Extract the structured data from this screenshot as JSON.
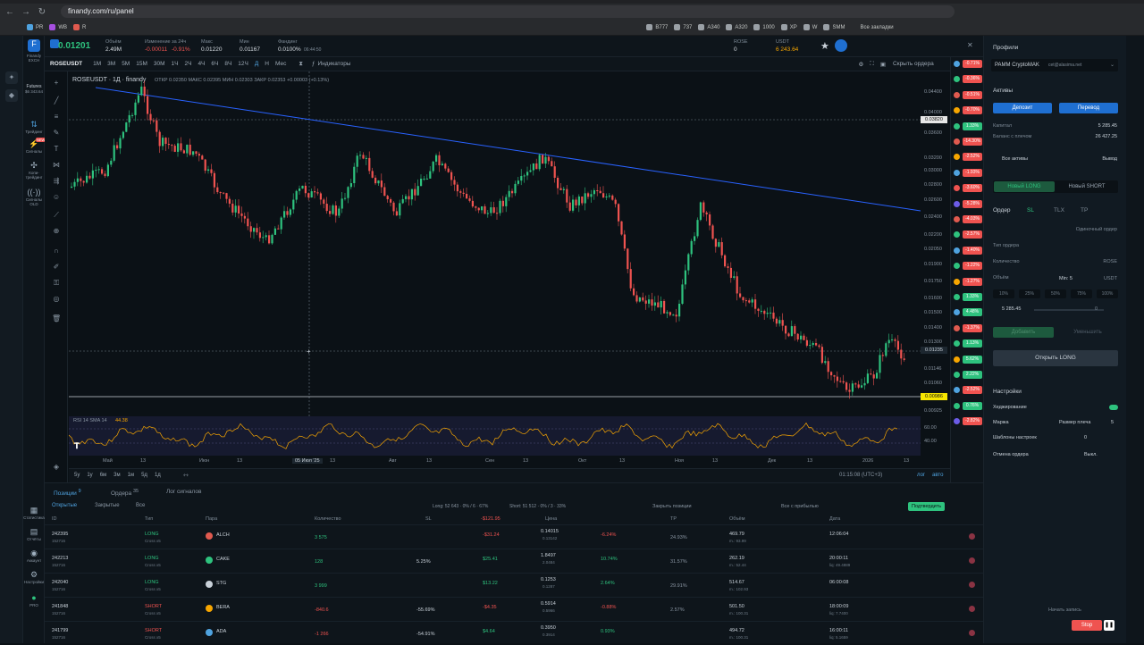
{
  "browser": {
    "url": "finandy.com/ru/panel",
    "all_bookmarks": "Все закладки",
    "bookmarks": [
      "PR",
      "WB",
      "R",
      "B777",
      "737",
      "A340",
      "A320",
      "1000",
      "XP",
      "W",
      "SMM"
    ]
  },
  "header": {
    "pair_price": "0.01201",
    "volume_label": "Объём",
    "volume": "2.49M",
    "change_label": "Изменение за 24ч",
    "change": "-0.00011",
    "change_pct": "-0.91%",
    "max_label": "Макс",
    "max": "0.01220",
    "min_label": "Мин",
    "min": "0.01167",
    "funding_label": "Фандинг",
    "funding": "0.0100%",
    "funding_time": "06:44:50",
    "asset_label": "ROSE",
    "asset_value": "0",
    "usdt_label": "USDT",
    "usdt_value": "6 243.64"
  },
  "leftnav": {
    "brand": "Finandy EXCH",
    "futures": "Futures",
    "futures_balance": "$6 343.64",
    "items": [
      "Трейдинг",
      "Сигналы",
      "Копи-трейдинг",
      "Сигналы OLD"
    ],
    "bottom": [
      "Статистика",
      "Отчёты",
      "Аккаунт",
      "Настройки",
      "PRO"
    ],
    "new_badge": "NEW"
  },
  "toolbar": {
    "symbol": "ROSEUSDT",
    "timeframes": [
      "1М",
      "3М",
      "5М",
      "15М",
      "30М",
      "1Ч",
      "2Ч",
      "4Ч",
      "6Ч",
      "8Ч",
      "12Ч",
      "Д",
      "Н",
      "Мес"
    ],
    "active_tf": "Д",
    "indicators": "Индикаторы",
    "hide_order": "Скрыть ордера"
  },
  "chart": {
    "legend_symbol": "ROSEUSDT · 1Д · finandy",
    "ohlc": "ОТКР 0.02350  МАКС 0.02395  МИН 0.02303  ЗАКР 0.02353 +0.00003 (+0.13%)",
    "rsi_label": "RSI 14 SMA 14",
    "rsi_value": "44.38",
    "date_label": "05 Июл '25",
    "price_ticks": [
      "0.04400",
      "0.04000",
      "0.03600",
      "0.03200",
      "0.03000",
      "0.02800",
      "0.02600",
      "0.02400",
      "0.02200",
      "0.02050",
      "0.01900",
      "0.01750",
      "0.01600",
      "0.01500",
      "0.01400",
      "0.01300",
      "0.01146",
      "0.01060",
      "0.00925"
    ],
    "rsi_ticks": [
      "60.00",
      "40.00"
    ],
    "time_ticks": [
      "Май",
      "13",
      "Июн",
      "13",
      "13",
      "Авг",
      "13",
      "Сен",
      "13",
      "Окт",
      "13",
      "Ноя",
      "13",
      "Дек",
      "13",
      "2026",
      "13"
    ],
    "crosshair_price": "0.03820",
    "current_price": "0.01235",
    "low_price": "0.00986",
    "ranges": [
      "5у",
      "1у",
      "6м",
      "3м",
      "1м",
      "5д",
      "1д"
    ],
    "clock": "01:15:08 (UTC+3)",
    "log": "лог",
    "auto": "авто"
  },
  "tickers": [
    {
      "pct": "-0.71%",
      "color": "#ef5350",
      "dot": "#4fa3e0"
    },
    {
      "pct": "-0.36%",
      "color": "#ef5350",
      "dot": "#2ec27e"
    },
    {
      "pct": "-0.51%",
      "color": "#ef5350",
      "dot": "#e05a4f"
    },
    {
      "pct": "-0.70%",
      "color": "#ef5350",
      "dot": "#f7a600"
    },
    {
      "pct": "1.33%",
      "color": "#2ec27e",
      "dot": "#2ec27e"
    },
    {
      "pct": "-14.30%",
      "color": "#ef5350",
      "dot": "#e05a4f"
    },
    {
      "pct": "-2.52%",
      "color": "#ef5350",
      "dot": "#f7a600"
    },
    {
      "pct": "-1.93%",
      "color": "#ef5350",
      "dot": "#4fa3e0"
    },
    {
      "pct": "-3.60%",
      "color": "#ef5350",
      "dot": "#ef5350"
    },
    {
      "pct": "-5.28%",
      "color": "#ef5350",
      "dot": "#6c5ce7"
    },
    {
      "pct": "-4.03%",
      "color": "#ef5350",
      "dot": "#e05a4f"
    },
    {
      "pct": "-2.57%",
      "color": "#ef5350",
      "dot": "#2ec27e"
    },
    {
      "pct": "-1.40%",
      "color": "#ef5350",
      "dot": "#4fa3e0"
    },
    {
      "pct": "-1.22%",
      "color": "#ef5350",
      "dot": "#2ec27e"
    },
    {
      "pct": "-1.27%",
      "color": "#ef5350",
      "dot": "#f7a600"
    },
    {
      "pct": "1.33%",
      "color": "#2ec27e",
      "dot": "#2ec27e"
    },
    {
      "pct": "4.48%",
      "color": "#2ec27e",
      "dot": "#4fa3e0"
    },
    {
      "pct": "-1.37%",
      "color": "#ef5350",
      "dot": "#e05a4f"
    },
    {
      "pct": "1.13%",
      "color": "#2ec27e",
      "dot": "#2ec27e"
    },
    {
      "pct": "5.62%",
      "color": "#2ec27e",
      "dot": "#f7a600"
    },
    {
      "pct": "2.22%",
      "color": "#2ec27e",
      "dot": "#2ec27e"
    },
    {
      "pct": "-2.52%",
      "color": "#ef5350",
      "dot": "#4fa3e0"
    },
    {
      "pct": "0.76%",
      "color": "#2ec27e",
      "dot": "#2ec27e"
    },
    {
      "pct": "-2.82%",
      "color": "#ef5350",
      "dot": "#6c5ce7"
    }
  ],
  "rightpanel": {
    "profiles": "Профили",
    "account": "PAMM CryptoMAK",
    "account_email": "cet@alasima.net",
    "assets": "Активы",
    "deposit": "Депозит",
    "transfer": "Перевод",
    "capital_label": "Капитал",
    "capital": "5 285.45",
    "balance_label": "Баланс с плечом",
    "balance": "26 427.25",
    "all_assets": "Все активы",
    "withdraw": "Вывод",
    "new_long": "Новый LONG",
    "new_short": "Новый SHORT",
    "order_tabs": [
      "Ордер",
      "SL",
      "TLX",
      "TP"
    ],
    "single_order": "Одиночный ордер",
    "order_type": "Тип ордера",
    "qty_label": "Количество",
    "qty_unit": "ROSE",
    "volume_label": "Объём",
    "volume_min": "Min: 5",
    "volume_unit": "USDT",
    "percents": [
      "10%",
      "25%",
      "50%",
      "75%",
      "100%"
    ],
    "slider_value": "5 285.45",
    "slider_zero": "0",
    "add": "Добавить",
    "reduce": "Уменьшить",
    "open_long": "Открыть LONG",
    "settings": "Настройки",
    "hedging": "Хеджирование",
    "margin": "Маржа",
    "leverage_label": "Размер плеча",
    "leverage": "5",
    "templates": "Шаблоны настроек",
    "templates_val": "0",
    "cancel_order": "Отмена ордера",
    "cancel_val": "Выкл.",
    "start_rec": "Начать запись",
    "stop": "Stop"
  },
  "bottom": {
    "tabs": [
      "Позиции",
      "Ордера",
      "Лог сигналов"
    ],
    "positions_count": "9",
    "orders_count": "35",
    "subtabs": [
      "Открытые",
      "Закрытые",
      "Все"
    ],
    "long_summary": "Long: 52 643 · 0% / 6 · 67%",
    "short_summary": "Short: 51 512 · 0% / 3 · 33%",
    "close_positions": "Закрыть позиции",
    "all_profit": "Все с прибылью",
    "confirm": "Подтвердить",
    "pnl_total": "-$121.95",
    "headers": [
      "ID",
      "Тип",
      "Пара",
      "Количество",
      "SL",
      "",
      "Цена",
      "",
      "TP",
      "Объём",
      "Дата"
    ],
    "rows": [
      {
        "id": "242395",
        "sub": "152716",
        "type": "LONG",
        "cross": "Cross x5",
        "pair": "ALCH",
        "qty": "3 575",
        "sl": "",
        "pnl": "-$31.24",
        "price": "0.14015",
        "price2": "0.13142",
        "pct": "-6.24%",
        "tp": "24.93%",
        "vol": "469.79",
        "vol2": "m.: 93.99",
        "date": "12:06:04",
        "date2": "",
        "side": "long"
      },
      {
        "id": "242213",
        "sub": "152716",
        "type": "LONG",
        "cross": "Cross x5",
        "pair": "CAKE",
        "qty": "128",
        "sl": "5.25%",
        "pnl": "$25.41",
        "price": "1.8497",
        "price2": "2.0484",
        "pct": "10.74%",
        "tp": "31.57%",
        "vol": "262.19",
        "vol2": "m.: 52.44",
        "date": "20:00:11",
        "date2": "liq: 49.4889",
        "side": "long"
      },
      {
        "id": "242040",
        "sub": "152716",
        "type": "LONG",
        "cross": "Cross x5",
        "pair": "STG",
        "qty": "3 999",
        "sl": "",
        "pnl": "$13.22",
        "price": "0.1253",
        "price2": "0.1287",
        "pct": "2.64%",
        "tp": "29.91%",
        "vol": "514.67",
        "vol2": "m.: 102.93",
        "date": "06:00:08",
        "date2": "",
        "side": "long"
      },
      {
        "id": "241848",
        "sub": "152716",
        "type": "SHORT",
        "cross": "Cross x5",
        "pair": "BERA",
        "qty": "-840.6",
        "sl": "-55.69%",
        "pnl": "-$4.35",
        "price": "0.5914",
        "price2": "0.5966",
        "pct": "-0.88%",
        "tp": "2.57%",
        "vol": "501.50",
        "vol2": "m.: 100.31",
        "date": "18:00:09",
        "date2": "liq: 7.7400",
        "side": "short"
      },
      {
        "id": "241799",
        "sub": "152716",
        "type": "SHORT",
        "cross": "Cross x5",
        "pair": "ADA",
        "qty": "-1 266",
        "sl": "-54.91%",
        "pnl": "$4.64",
        "price": "0.3950",
        "price2": "0.3914",
        "pct": "0.93%",
        "tp": "",
        "vol": "494.72",
        "vol2": "m.: 100.31",
        "date": "16:00:11",
        "date2": "liq: 5.1659",
        "side": "short"
      }
    ]
  }
}
